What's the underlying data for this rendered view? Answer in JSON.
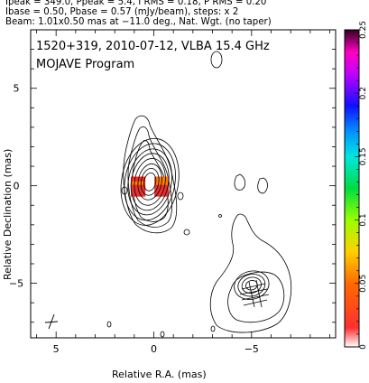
{
  "header": {
    "line1": "Ipeak = 349.0, Ppeak = 5.4, I RMS = 0.18, P RMS = 0.20",
    "line2": "Ibase = 0.50, Pbase = 0.57 (mJy/beam), steps: x 2",
    "line3": "Beam: 1.01x0.50 mas at −11.0 deg., Nat. Wgt. (no taper)"
  },
  "chart_data": {
    "type": "heatmap",
    "title": "1520+319, 2010-07-12, VLBA 15.4 GHz",
    "subtitle": "MOJAVE Program",
    "xlabel": "Relative R.A. (mas)",
    "ylabel": "Relative Declination (mas)",
    "xlim": [
      6.3,
      -9.3
    ],
    "ylim": [
      -7.8,
      8.0
    ],
    "x_ticks": [
      {
        "value": 5,
        "label": "5"
      },
      {
        "value": 0,
        "label": "0"
      },
      {
        "value": -5,
        "label": "−5"
      }
    ],
    "y_ticks": [
      {
        "value": 5,
        "label": "5"
      },
      {
        "value": 0,
        "label": "0"
      },
      {
        "value": -5,
        "label": "−5"
      }
    ],
    "colorbar": {
      "min": 0,
      "max": 0.25,
      "ticks": [
        {
          "value": 0,
          "label": "0"
        },
        {
          "value": 0.05,
          "label": "0.05"
        },
        {
          "value": 0.1,
          "label": "0.1"
        },
        {
          "value": 0.15,
          "label": "0.15"
        },
        {
          "value": 0.2,
          "label": "0.2"
        },
        {
          "value": 0.25,
          "label": "0.25"
        }
      ]
    },
    "contours": [
      {
        "component": "core",
        "cx": 0.2,
        "cy": 0.2,
        "rx": [
          0.3,
          0.45,
          0.6,
          0.78,
          0.95,
          1.1,
          1.28,
          1.45
        ]
      },
      {
        "component": "jet",
        "cx": -5.0,
        "cy": -5.1,
        "rx": [
          0.3,
          0.5,
          0.7,
          0.9
        ]
      }
    ],
    "polarization_patches": [
      {
        "x": 0.8,
        "y": 0.0,
        "value": 0.03
      },
      {
        "x": -0.4,
        "y": 0.0,
        "value": 0.04
      }
    ],
    "beam": {
      "major_mas": 1.01,
      "minor_mas": 0.5,
      "pa_deg": -11.0
    }
  }
}
